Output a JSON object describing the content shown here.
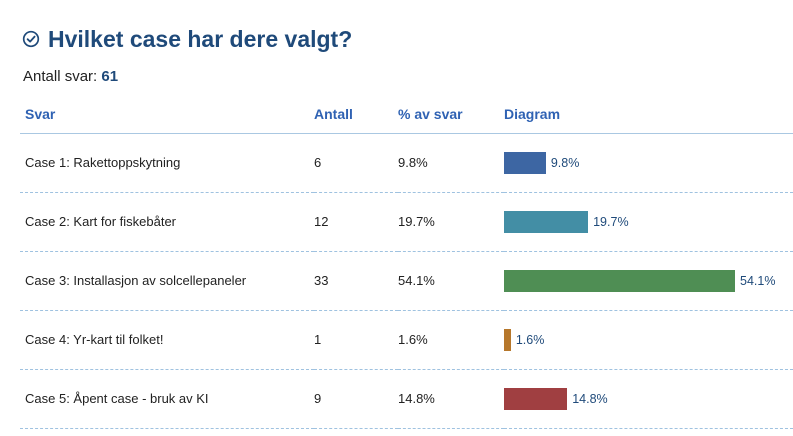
{
  "header": {
    "title": "Hvilket case har dere valgt?",
    "icon": "check-circle-icon"
  },
  "summary": {
    "label": "Antall svar:",
    "value": "61"
  },
  "table": {
    "columns": [
      "Svar",
      "Antall",
      "% av svar",
      "Diagram"
    ],
    "rows": [
      {
        "answer": "Case 1: Rakettoppskytning",
        "count": "6",
        "percent": "9.8%",
        "value": 9.8,
        "color": "#3d66a3"
      },
      {
        "answer": "Case 2: Kart for fiskebåter",
        "count": "12",
        "percent": "19.7%",
        "value": 19.7,
        "color": "#438ea5"
      },
      {
        "answer": "Case 3: Installasjon av solcellepaneler",
        "count": "33",
        "percent": "54.1%",
        "value": 54.1,
        "color": "#4f8e54"
      },
      {
        "answer": "Case 4: Yr-kart til folket!",
        "count": "1",
        "percent": "1.6%",
        "value": 1.6,
        "color": "#b6772b"
      },
      {
        "answer": "Case 5: Åpent case - bruk av KI",
        "count": "9",
        "percent": "14.8%",
        "value": 14.8,
        "color": "#a03f41"
      }
    ]
  }
}
